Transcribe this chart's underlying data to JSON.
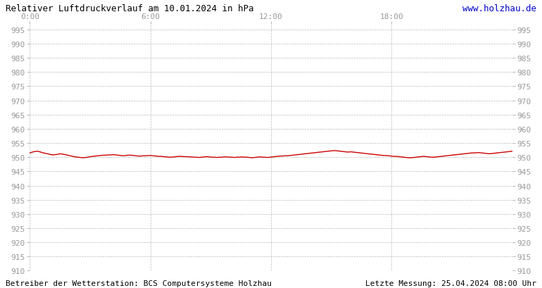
{
  "title": "Relativer Luftdruckverlauf am 10.01.2024 in hPa",
  "url_text": "www.holzhau.de",
  "footer_left": "Betreiber der Wetterstation: BCS Computersysteme Holzhau",
  "footer_right": "Letzte Messung: 25.04.2024 08:00 Uhr",
  "bg_color": "#ffffff",
  "plot_bg_color": "#ffffff",
  "line_color": "#cc0000",
  "grid_color": "#bbbbbb",
  "tick_color": "#999999",
  "text_color": "#000000",
  "url_color": "#0000cc",
  "ylim": [
    910,
    997
  ],
  "ytick_step": 5,
  "xlim_hours": [
    0,
    24
  ],
  "xtick_positions": [
    0,
    6,
    12,
    18
  ],
  "xtick_labels": [
    "0:00",
    "6:00",
    "12:00",
    "18:00"
  ],
  "pressure_data": [
    951.5,
    951.8,
    952.0,
    952.1,
    951.9,
    951.6,
    951.4,
    951.2,
    951.0,
    950.8,
    950.9,
    951.0,
    951.2,
    951.1,
    950.9,
    950.7,
    950.5,
    950.3,
    950.1,
    950.0,
    949.9,
    949.8,
    949.9,
    950.0,
    950.2,
    950.3,
    950.4,
    950.5,
    950.6,
    950.7,
    950.7,
    950.8,
    950.8,
    950.9,
    950.8,
    950.7,
    950.6,
    950.5,
    950.6,
    950.7,
    950.7,
    950.6,
    950.5,
    950.4,
    950.4,
    950.5,
    950.5,
    950.6,
    950.6,
    950.5,
    950.4,
    950.3,
    950.3,
    950.2,
    950.1,
    950.0,
    950.0,
    950.1,
    950.2,
    950.3,
    950.3,
    950.2,
    950.2,
    950.1,
    950.1,
    950.0,
    950.0,
    949.9,
    950.0,
    950.1,
    950.2,
    950.1,
    950.0,
    950.0,
    949.9,
    950.0,
    950.0,
    950.1,
    950.1,
    950.0,
    950.0,
    949.9,
    950.0,
    950.0,
    950.1,
    950.0,
    950.0,
    949.9,
    949.8,
    949.9,
    950.0,
    950.1,
    950.0,
    950.0,
    949.9,
    950.0,
    950.1,
    950.2,
    950.3,
    950.4,
    950.4,
    950.5,
    950.5,
    950.6,
    950.7,
    950.8,
    950.9,
    951.0,
    951.1,
    951.2,
    951.3,
    951.4,
    951.5,
    951.6,
    951.7,
    951.8,
    951.9,
    952.0,
    952.1,
    952.2,
    952.3,
    952.3,
    952.2,
    952.1,
    952.0,
    951.9,
    951.8,
    951.9,
    951.8,
    951.7,
    951.6,
    951.5,
    951.4,
    951.3,
    951.2,
    951.1,
    951.0,
    950.9,
    950.8,
    950.7,
    950.6,
    950.6,
    950.5,
    950.4,
    950.3,
    950.3,
    950.2,
    950.1,
    950.0,
    949.9,
    949.8,
    949.8,
    949.9,
    950.0,
    950.1,
    950.2,
    950.3,
    950.2,
    950.1,
    950.0,
    950.0,
    950.1,
    950.2,
    950.3,
    950.4,
    950.5,
    950.6,
    950.7,
    950.8,
    950.9,
    951.0,
    951.1,
    951.2,
    951.3,
    951.4,
    951.5,
    951.5,
    951.6,
    951.6,
    951.5,
    951.4,
    951.3,
    951.2,
    951.3,
    951.4,
    951.5,
    951.6,
    951.7,
    951.8,
    951.9,
    952.0,
    952.1
  ]
}
